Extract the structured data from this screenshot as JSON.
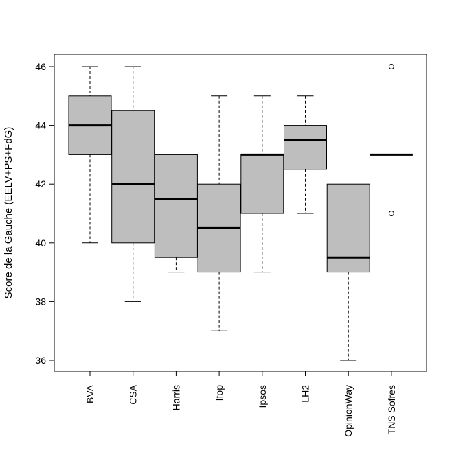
{
  "chart_data": {
    "type": "boxplot",
    "title": "",
    "xlabel": "",
    "ylabel": "Score de la Gauche (EELV+PS+FdG)",
    "ylim": [
      35.6,
      46.4
    ],
    "yticks": [
      36,
      38,
      40,
      42,
      44,
      46
    ],
    "categories": [
      "BVA",
      "CSA",
      "Harris",
      "Ifop",
      "Ipsos",
      "LH2",
      "OpinionWay",
      "TNS Sofres"
    ],
    "boxes": [
      {
        "name": "BVA",
        "whisker_low": 40,
        "q1": 43,
        "median": 44,
        "q3": 45,
        "whisker_high": 46,
        "outliers": []
      },
      {
        "name": "CSA",
        "whisker_low": 38,
        "q1": 40,
        "median": 42,
        "q3": 44.5,
        "whisker_high": 46,
        "outliers": []
      },
      {
        "name": "Harris",
        "whisker_low": 39,
        "q1": 39.5,
        "median": 41.5,
        "q3": 43,
        "whisker_high": 43,
        "outliers": []
      },
      {
        "name": "Ifop",
        "whisker_low": 37,
        "q1": 39,
        "median": 40.5,
        "q3": 42,
        "whisker_high": 45,
        "outliers": []
      },
      {
        "name": "Ipsos",
        "whisker_low": 39,
        "q1": 41,
        "median": 43,
        "q3": 43,
        "whisker_high": 45,
        "outliers": []
      },
      {
        "name": "LH2",
        "whisker_low": 41,
        "q1": 42.5,
        "median": 43.5,
        "q3": 44,
        "whisker_high": 45,
        "outliers": []
      },
      {
        "name": "OpinionWay",
        "whisker_low": 36,
        "q1": 39,
        "median": 39.5,
        "q3": 42,
        "whisker_high": 42,
        "outliers": []
      },
      {
        "name": "TNS Sofres",
        "whisker_low": 43,
        "q1": 43,
        "median": 43,
        "q3": 43,
        "whisker_high": 43,
        "outliers": [
          46,
          41
        ]
      }
    ],
    "box_fill": "#bebebe",
    "grid": false,
    "legend": "none"
  }
}
